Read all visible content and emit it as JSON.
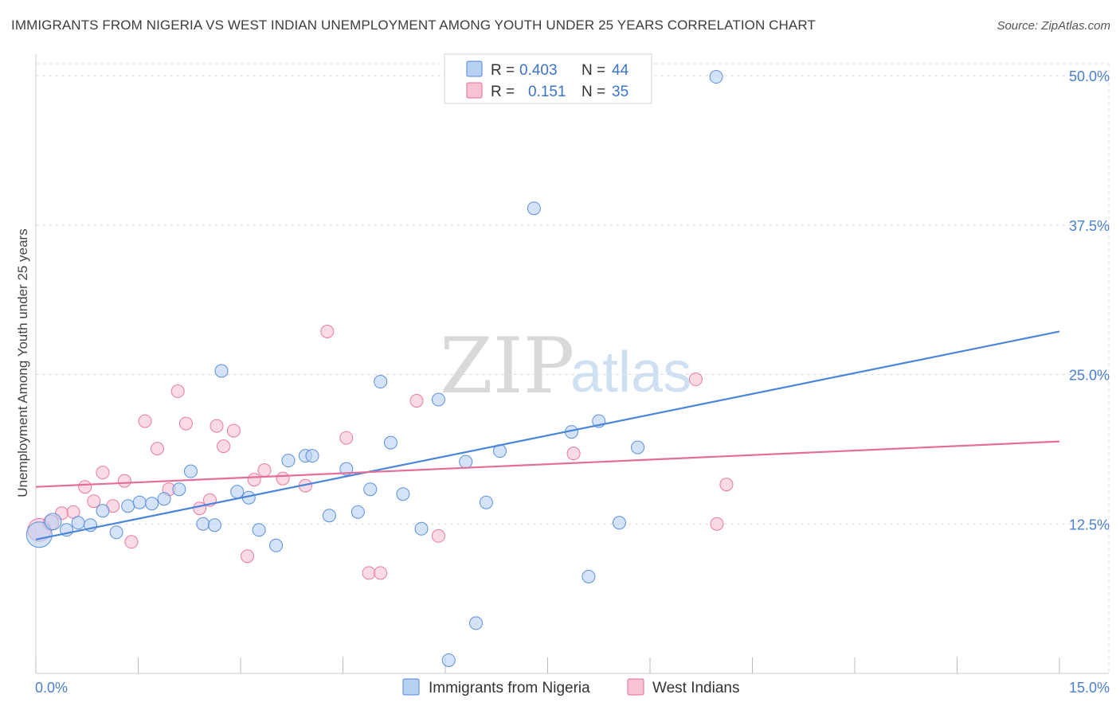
{
  "title": "IMMIGRANTS FROM NIGERIA VS WEST INDIAN UNEMPLOYMENT AMONG YOUTH UNDER 25 YEARS CORRELATION CHART",
  "source": "Source: ZipAtlas.com",
  "watermark": {
    "zip": "ZIP",
    "atlas": "atlas"
  },
  "colors": {
    "blue": "#4a85d9",
    "blue_fill": "#b8d0f2",
    "pink": "#e36e9a",
    "pink_fill": "#f7c3d4",
    "tick_text": "#4a7fcf",
    "grid": "#dcdcdc"
  },
  "legend": {
    "rows": [
      {
        "r_label": "R =",
        "r_value": "0.403",
        "n_label": "N =",
        "n_value": "44"
      },
      {
        "r_label": "R =",
        "r_value": "0.151",
        "n_label": "N =",
        "n_value": "35"
      }
    ]
  },
  "bottom_legend": {
    "items": [
      "Immigrants from Nigeria",
      "West Indians"
    ]
  },
  "chart_data": {
    "type": "scatter",
    "title": "IMMIGRANTS FROM NIGERIA VS WEST INDIAN UNEMPLOYMENT AMONG YOUTH UNDER 25 YEARS CORRELATION CHART",
    "xlabel": "",
    "ylabel": "Unemployment Among Youth under 25 years",
    "xlim": [
      0,
      15
    ],
    "ylim": [
      0,
      51
    ],
    "x_tick_labels": [
      "0.0%",
      "15.0%"
    ],
    "y_ticks": [
      12.5,
      25.0,
      37.5,
      50.0
    ],
    "y_tick_labels": [
      "12.5%",
      "25.0%",
      "37.5%",
      "50.0%"
    ],
    "grid": true,
    "legend_position": "top-center",
    "series": [
      {
        "name": "Immigrants from Nigeria",
        "R": 0.403,
        "N": 44,
        "trend": {
          "x0": 0,
          "y0": 11.2,
          "x1": 15,
          "y1": 28.6
        },
        "points": [
          [
            0.05,
            11.6,
            2
          ],
          [
            0.25,
            12.7,
            1.3
          ],
          [
            0.45,
            12.0,
            1
          ],
          [
            0.62,
            12.6,
            1
          ],
          [
            0.8,
            12.4,
            1
          ],
          [
            0.98,
            13.6,
            1
          ],
          [
            1.18,
            11.8,
            1
          ],
          [
            1.35,
            14.0,
            1
          ],
          [
            1.52,
            14.3,
            1
          ],
          [
            1.7,
            14.2,
            1
          ],
          [
            1.88,
            14.6,
            1
          ],
          [
            2.1,
            15.4,
            1
          ],
          [
            2.27,
            16.9,
            1
          ],
          [
            2.45,
            12.5,
            1
          ],
          [
            2.62,
            12.4,
            1
          ],
          [
            2.72,
            25.3,
            1
          ],
          [
            2.95,
            15.2,
            1
          ],
          [
            3.12,
            14.7,
            1
          ],
          [
            3.27,
            12.0,
            1
          ],
          [
            3.52,
            10.7,
            1
          ],
          [
            3.7,
            17.8,
            1
          ],
          [
            3.95,
            18.2,
            1
          ],
          [
            4.05,
            18.2,
            1
          ],
          [
            4.3,
            13.2,
            1
          ],
          [
            4.55,
            17.1,
            1
          ],
          [
            4.72,
            13.5,
            1
          ],
          [
            4.9,
            15.4,
            1
          ],
          [
            5.05,
            24.4,
            1
          ],
          [
            5.2,
            19.3,
            1
          ],
          [
            5.38,
            15.0,
            1
          ],
          [
            5.65,
            12.1,
            1
          ],
          [
            5.9,
            22.9,
            1
          ],
          [
            6.05,
            1.1,
            1
          ],
          [
            6.3,
            17.7,
            1
          ],
          [
            6.45,
            4.2,
            1
          ],
          [
            6.6,
            14.3,
            1
          ],
          [
            6.8,
            18.6,
            1
          ],
          [
            7.3,
            38.9,
            1
          ],
          [
            7.85,
            20.2,
            1
          ],
          [
            8.1,
            8.1,
            1
          ],
          [
            8.25,
            21.1,
            1
          ],
          [
            8.55,
            12.6,
            1
          ],
          [
            8.82,
            18.9,
            1
          ],
          [
            9.97,
            49.9,
            1
          ]
        ]
      },
      {
        "name": "West Indians",
        "R": 0.151,
        "N": 35,
        "trend": {
          "x0": 0,
          "y0": 15.6,
          "x1": 15,
          "y1": 19.4
        },
        "points": [
          [
            0.05,
            12.0,
            1.8
          ],
          [
            0.22,
            12.6,
            1.2
          ],
          [
            0.38,
            13.4,
            1
          ],
          [
            0.55,
            13.5,
            1
          ],
          [
            0.72,
            15.6,
            1
          ],
          [
            0.85,
            14.4,
            1
          ],
          [
            0.98,
            16.8,
            1
          ],
          [
            1.13,
            14.0,
            1
          ],
          [
            1.3,
            16.1,
            1
          ],
          [
            1.4,
            11.0,
            1
          ],
          [
            1.6,
            21.1,
            1
          ],
          [
            1.78,
            18.8,
            1
          ],
          [
            1.95,
            15.4,
            1
          ],
          [
            2.08,
            23.6,
            1
          ],
          [
            2.2,
            20.9,
            1
          ],
          [
            2.4,
            13.8,
            1
          ],
          [
            2.55,
            14.5,
            1
          ],
          [
            2.65,
            20.7,
            1
          ],
          [
            2.75,
            19.0,
            1
          ],
          [
            2.9,
            20.3,
            1
          ],
          [
            3.1,
            9.8,
            1
          ],
          [
            3.2,
            16.2,
            1
          ],
          [
            3.35,
            17.0,
            1
          ],
          [
            3.62,
            16.3,
            1
          ],
          [
            3.95,
            15.7,
            1
          ],
          [
            4.27,
            28.6,
            1
          ],
          [
            4.55,
            19.7,
            1
          ],
          [
            4.88,
            8.4,
            1
          ],
          [
            5.05,
            8.4,
            1
          ],
          [
            5.58,
            22.8,
            1
          ],
          [
            5.9,
            11.5,
            1
          ],
          [
            7.88,
            18.4,
            1
          ],
          [
            9.67,
            24.6,
            1
          ],
          [
            9.98,
            12.5,
            1
          ],
          [
            10.12,
            15.8,
            1
          ]
        ]
      }
    ]
  }
}
